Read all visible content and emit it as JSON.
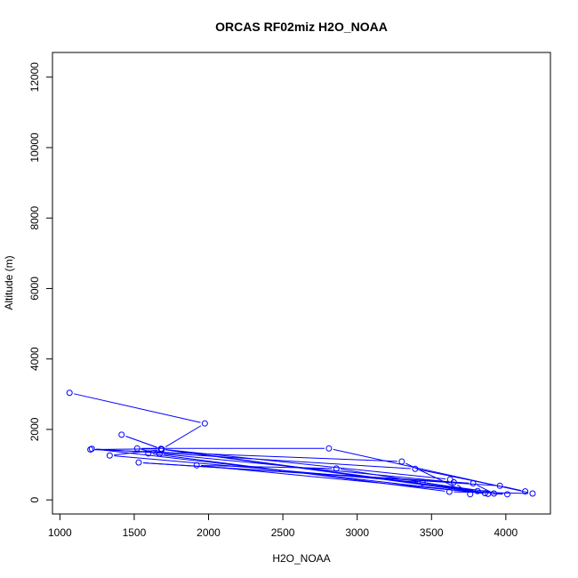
{
  "chart_data": {
    "type": "line",
    "title": "ORCAS RF02miz H2O_NOAA",
    "xlabel": "H2O_NOAA",
    "ylabel": "Altitude (m)",
    "xlim": [
      950,
      4300
    ],
    "ylim": [
      -400,
      12700
    ],
    "xticks": [
      1000,
      1500,
      2000,
      2500,
      3000,
      3500,
      4000
    ],
    "yticks": [
      0,
      2000,
      4000,
      6000,
      8000,
      10000,
      12000
    ],
    "grid": false,
    "legend": "none",
    "color": "#0000ff",
    "series": [
      {
        "x": [
          1065,
          1975,
          1685,
          1415,
          1680,
          1205,
          3300,
          3760,
          3650,
          1670,
          1520,
          2810,
          4180,
          3620,
          1595,
          1685,
          1335,
          3440,
          4010,
          3880,
          1215,
          3390,
          4130,
          3960,
          1530,
          3780,
          3920,
          1680,
          3860,
          1920,
          2860,
          3810,
          1685,
          3625
        ],
        "y": [
          3040,
          2170,
          1440,
          1850,
          1450,
          1430,
          1090,
          160,
          500,
          1310,
          1460,
          1460,
          180,
          230,
          1320,
          1430,
          1260,
          490,
          160,
          170,
          1450,
          880,
          240,
          400,
          1060,
          470,
          180,
          1440,
          190,
          980,
          890,
          250,
          1440,
          580
        ]
      }
    ]
  }
}
